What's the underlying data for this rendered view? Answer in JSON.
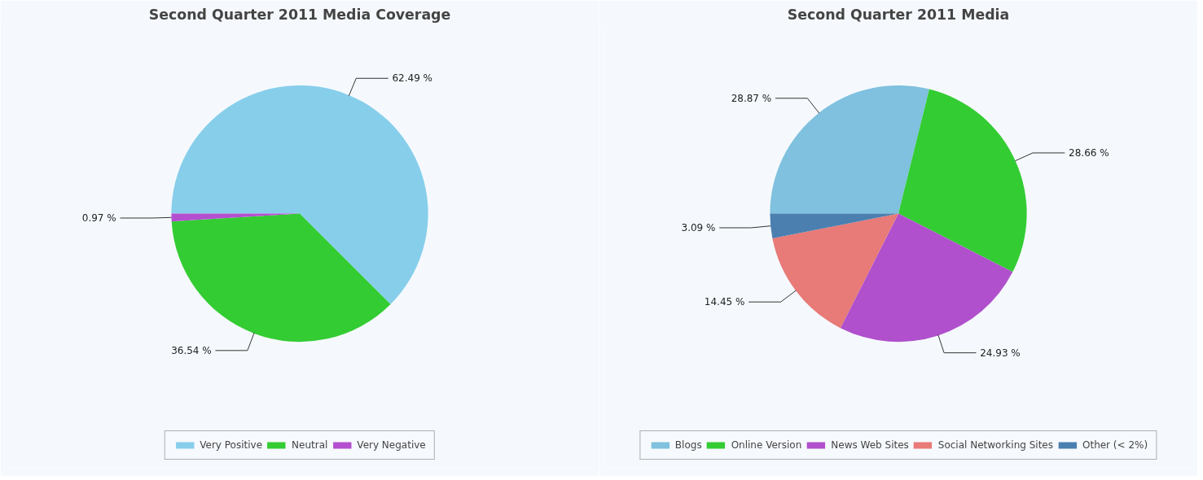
{
  "chart_data": [
    {
      "type": "pie",
      "title": "Second Quarter 2011 Media Coverage",
      "categories": [
        "Very Positive",
        "Neutral",
        "Very Negative"
      ],
      "values": [
        62.49,
        36.54,
        0.97
      ],
      "colors": [
        "#87ceeb",
        "#33cc33",
        "#b44fd0"
      ],
      "value_labels": [
        "62.49 %",
        "36.54 %",
        "0.97 %"
      ],
      "legend": "bottom"
    },
    {
      "type": "pie",
      "title": "Second Quarter 2011 Media",
      "categories": [
        "Blogs",
        "Online Version",
        "News Web Sites",
        "Social Networking Sites",
        "Other (< 2%)"
      ],
      "values": [
        28.87,
        28.66,
        24.93,
        14.45,
        3.09
      ],
      "colors": [
        "#7fc1de",
        "#33cc33",
        "#b050cc",
        "#e87a78",
        "#4a7fb0"
      ],
      "value_labels": [
        "28.87 %",
        "28.66 %",
        "24.93 %",
        "14.45 %",
        "3.09 %"
      ],
      "legend": "bottom"
    }
  ]
}
